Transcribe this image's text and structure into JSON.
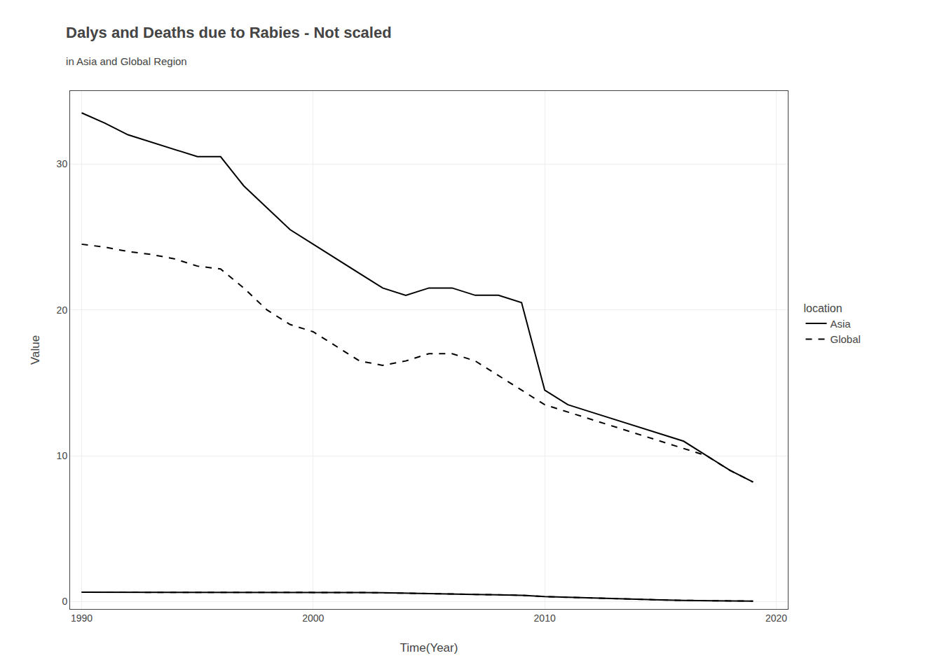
{
  "chart_data": {
    "type": "line",
    "title": "Dalys and Deaths due to Rabies - Not scaled",
    "subtitle": "in Asia and Global Region",
    "xlabel": "Time(Year)",
    "ylabel": "Value",
    "legend_title": "location",
    "x": [
      1990,
      1991,
      1992,
      1993,
      1994,
      1995,
      1996,
      1997,
      1998,
      1999,
      2000,
      2001,
      2002,
      2003,
      2004,
      2005,
      2006,
      2007,
      2008,
      2009,
      2010,
      2011,
      2012,
      2013,
      2014,
      2015,
      2016,
      2017,
      2018,
      2019
    ],
    "series": [
      {
        "name": "Asia",
        "color": "#000000",
        "line_style": "solid",
        "values": [
          33.5,
          32.8,
          32.0,
          31.5,
          31.0,
          30.5,
          30.5,
          28.5,
          27.0,
          25.5,
          24.5,
          23.5,
          22.5,
          21.5,
          21.0,
          21.5,
          21.5,
          21.0,
          21.0,
          20.5,
          14.5,
          13.5,
          13.0,
          12.5,
          12.0,
          11.5,
          11.0,
          10.0,
          9.0,
          8.2
        ]
      },
      {
        "name": "Global",
        "color": "#000000",
        "line_style": "dashed",
        "values": [
          24.5,
          24.3,
          24.0,
          23.8,
          23.5,
          23.0,
          22.8,
          21.5,
          20.0,
          19.0,
          18.5,
          17.5,
          16.5,
          16.2,
          16.5,
          17.0,
          17.0,
          16.5,
          15.5,
          14.5,
          13.5,
          13.0,
          12.5,
          12.0,
          11.5,
          11.0,
          10.5,
          10.0,
          9.0,
          8.2
        ]
      },
      {
        "color": "#000000",
        "line_style": "solid",
        "values": [
          0.65,
          0.65,
          0.65,
          0.65,
          0.65,
          0.65,
          0.65,
          0.65,
          0.65,
          0.65,
          0.65,
          0.65,
          0.63,
          0.61,
          0.59,
          0.56,
          0.53,
          0.5,
          0.47,
          0.44,
          0.35,
          0.3,
          0.25,
          0.2,
          0.16,
          0.12,
          0.09,
          0.07,
          0.05,
          0.04
        ]
      },
      {
        "color": "#000000",
        "line_style": "dashed",
        "values": [
          0.65,
          0.65,
          0.65,
          0.65,
          0.65,
          0.65,
          0.65,
          0.65,
          0.65,
          0.65,
          0.65,
          0.65,
          0.63,
          0.61,
          0.59,
          0.56,
          0.53,
          0.5,
          0.47,
          0.44,
          0.35,
          0.3,
          0.25,
          0.2,
          0.16,
          0.12,
          0.09,
          0.07,
          0.05,
          0.04
        ]
      }
    ],
    "xlim": [
      1989.5,
      2020.5
    ],
    "ylim": [
      -0.5,
      35
    ],
    "xticks": [
      1990,
      2000,
      2010,
      2020
    ],
    "yticks": [
      0,
      10,
      20,
      30
    ],
    "grid": true,
    "legend": "right"
  }
}
